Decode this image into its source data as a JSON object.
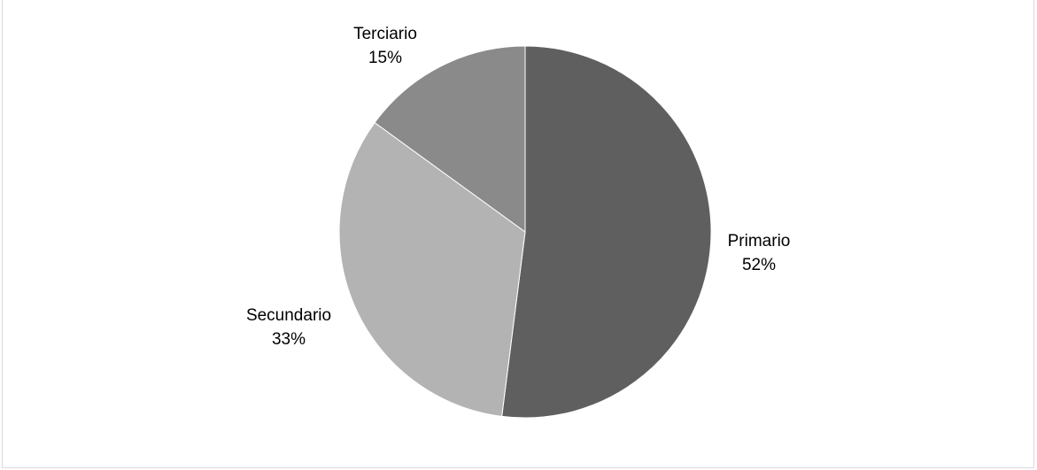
{
  "chart_data": {
    "type": "pie",
    "slices": [
      {
        "label": "Primario",
        "value": 52,
        "display": "52%",
        "color": "#5f5f5f"
      },
      {
        "label": "Secundario",
        "value": 33,
        "display": "33%",
        "color": "#b3b3b3"
      },
      {
        "label": "Terciario",
        "value": 15,
        "display": "15%",
        "color": "#8a8a8a"
      }
    ],
    "start": "12 o'clock",
    "direction": "clockwise",
    "labels": "outside"
  }
}
